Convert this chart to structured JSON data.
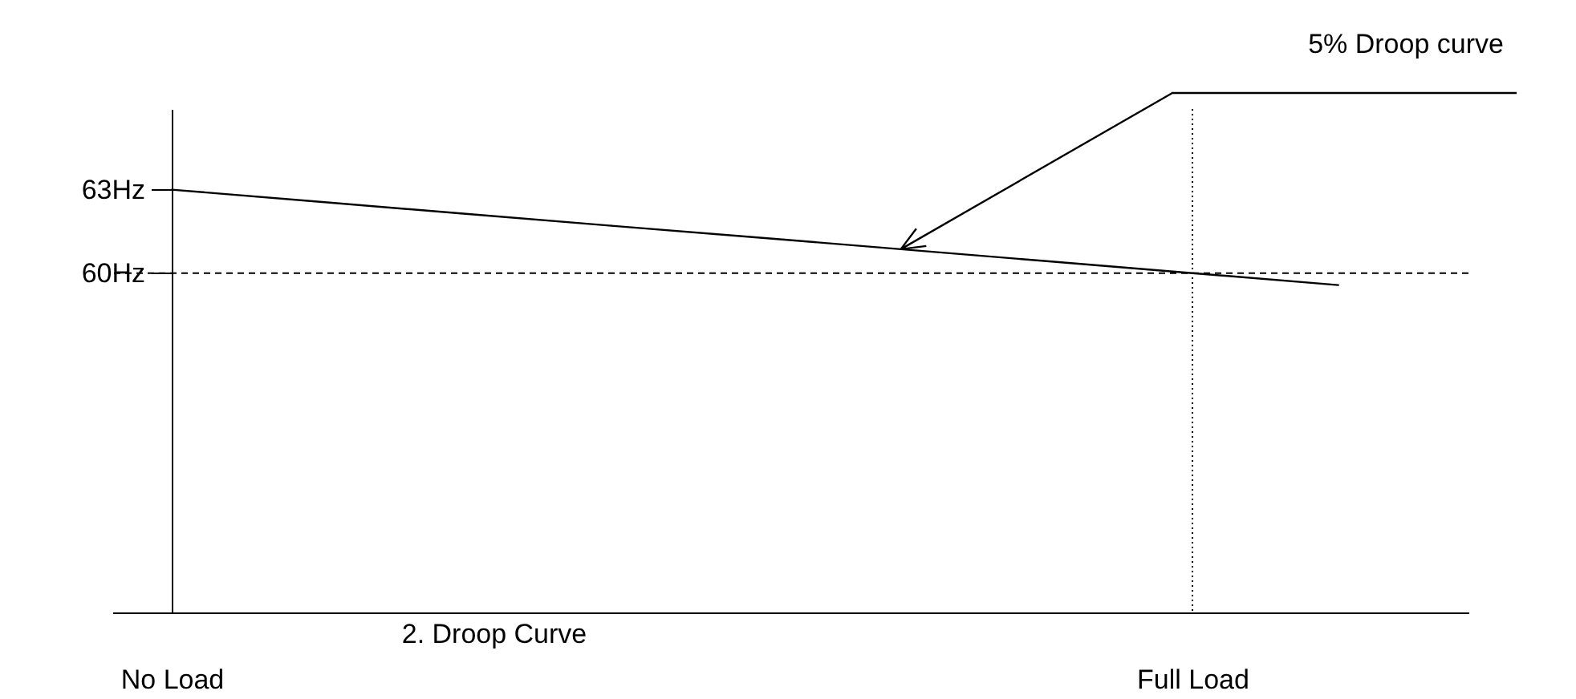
{
  "chart_data": {
    "type": "line",
    "title": "2. Droop Curve",
    "categories": [
      "No Load",
      null,
      null,
      null,
      null,
      null,
      null,
      "Full Load",
      null
    ],
    "series": [
      {
        "color": "#000000",
        "values": [
          63,
          62.57,
          62.14,
          61.71,
          61.29,
          60.86,
          60.43,
          60,
          59.57
        ]
      }
    ],
    "ylim": [
      47.8,
      65.9
    ],
    "yticks": [
      {
        "value": 60,
        "label": "60Hz"
      },
      {
        "value": 63,
        "label": "63Hz"
      }
    ],
    "ref_lines": [
      {
        "axis": "y",
        "value": 60,
        "line_style": "dashed",
        "color": "#000000"
      },
      {
        "axis": "x",
        "value": "Full Load",
        "line_style": "dotted",
        "color": "#000000"
      }
    ],
    "annotations": [
      "5% Droop curve"
    ]
  }
}
